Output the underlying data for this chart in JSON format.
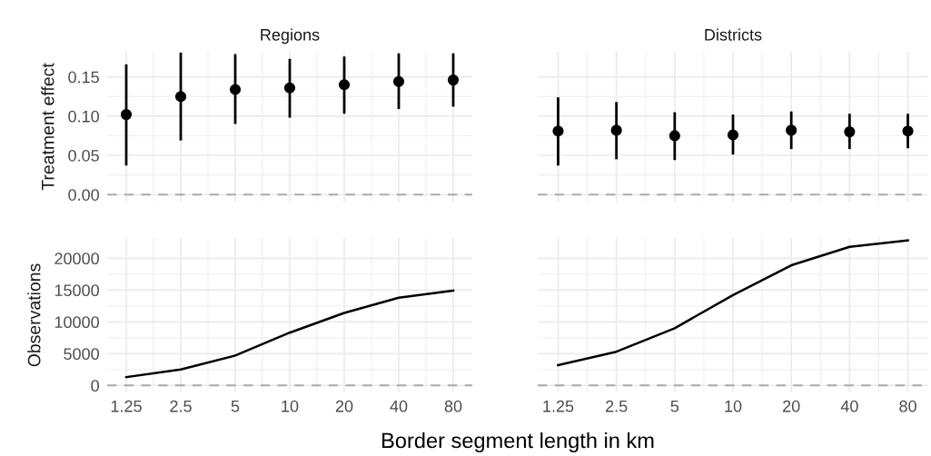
{
  "chart_data": [
    {
      "type": "scatter",
      "title": "Regions",
      "ylabel": "Treatment effect",
      "categories": [
        "1.25",
        "2.5",
        "5",
        "10",
        "20",
        "40",
        "80"
      ],
      "values": [
        0.102,
        0.125,
        0.134,
        0.136,
        0.14,
        0.144,
        0.146
      ],
      "errors": [
        [
          0.037,
          0.166
        ],
        [
          0.069,
          0.181
        ],
        [
          0.09,
          0.179
        ],
        [
          0.098,
          0.173
        ],
        [
          0.103,
          0.176
        ],
        [
          0.109,
          0.18
        ],
        [
          0.112,
          0.18
        ]
      ],
      "color": "#000000",
      "marker": "circle",
      "ylim": [
        -0.009,
        0.182
      ],
      "yticks": [
        {
          "value": 0,
          "label": "0.00"
        },
        {
          "value": 0.05,
          "label": "0.05"
        },
        {
          "value": 0.1,
          "label": "0.10"
        },
        {
          "value": 0.15,
          "label": "0.15"
        }
      ],
      "ref_lines": [
        {
          "axis": "y",
          "value": 0,
          "color": "#aaaaaa",
          "line_style": "dashed"
        }
      ],
      "grid": true,
      "tick_labels": "y"
    },
    {
      "type": "scatter",
      "title": "Districts",
      "categories": [
        "1.25",
        "2.5",
        "5",
        "10",
        "20",
        "40",
        "80"
      ],
      "values": [
        0.081,
        0.082,
        0.075,
        0.076,
        0.082,
        0.08,
        0.081
      ],
      "errors": [
        [
          0.037,
          0.124
        ],
        [
          0.045,
          0.118
        ],
        [
          0.044,
          0.105
        ],
        [
          0.051,
          0.102
        ],
        [
          0.058,
          0.106
        ],
        [
          0.058,
          0.103
        ],
        [
          0.059,
          0.103
        ]
      ],
      "color": "#000000",
      "marker": "circle",
      "ylim": [
        -0.009,
        0.182
      ],
      "yticks": [
        0,
        0.05,
        0.1,
        0.15
      ],
      "ref_lines": [
        {
          "axis": "y",
          "value": 0,
          "color": "#aaaaaa",
          "line_style": "dashed"
        }
      ],
      "grid": true,
      "tick_labels": false
    },
    {
      "type": "line",
      "ylabel": "Observations",
      "xlabel": "Border segment length in km",
      "categories": [
        "1.25",
        "2.5",
        "5",
        "10",
        "20",
        "40",
        "80"
      ],
      "values": [
        1300,
        2500,
        4700,
        8300,
        11400,
        13800,
        14900
      ],
      "color": "#000000",
      "ylim": [
        -1100,
        23190
      ],
      "yticks": [
        0,
        5000,
        10000,
        15000,
        20000
      ],
      "ref_lines": [
        {
          "axis": "y",
          "value": 0,
          "color": "#aaaaaa",
          "line_style": "dashed"
        }
      ],
      "grid": true
    },
    {
      "type": "line",
      "categories": [
        "1.25",
        "2.5",
        "5",
        "10",
        "20",
        "40",
        "80"
      ],
      "values": [
        3200,
        5300,
        9000,
        14200,
        18900,
        21800,
        22800
      ],
      "color": "#000000",
      "ylim": [
        -1100,
        23190
      ],
      "yticks": [
        0,
        5000,
        10000,
        15000,
        20000
      ],
      "ref_lines": [
        {
          "axis": "y",
          "value": 0,
          "color": "#aaaaaa",
          "line_style": "dashed"
        }
      ],
      "grid": true,
      "tick_labels": "x"
    }
  ]
}
